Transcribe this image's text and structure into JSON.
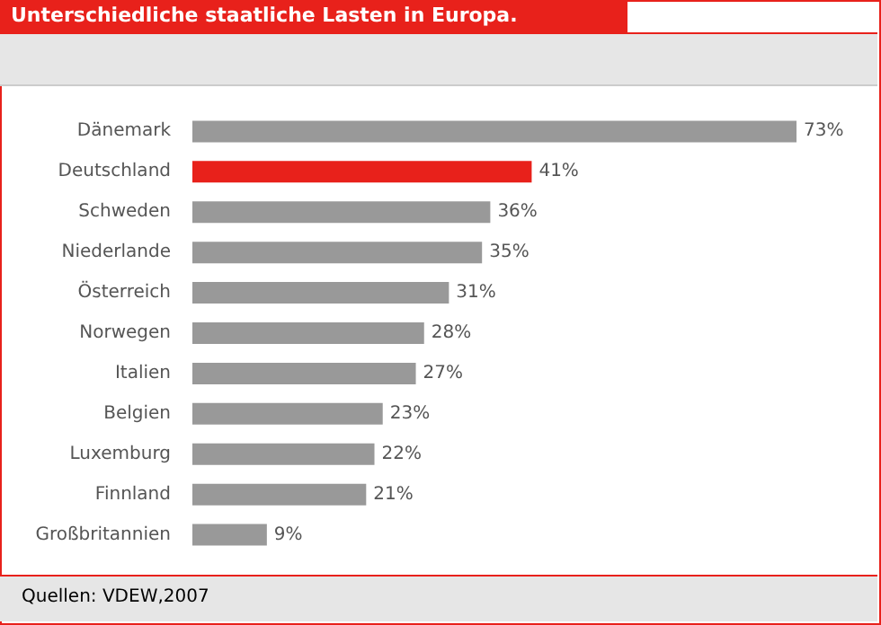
{
  "chart_data": {
    "type": "bar",
    "orientation": "horizontal",
    "title": "Unterschiedliche staatliche Lasten in Europa.",
    "categories": [
      "Dänemark",
      "Deutschland",
      "Schweden",
      "Niederlande",
      "Österreich",
      "Norwegen",
      "Italien",
      "Belgien",
      "Luxemburg",
      "Finnland",
      "Großbritannien"
    ],
    "values": [
      73,
      41,
      36,
      35,
      31,
      28,
      27,
      23,
      22,
      21,
      9
    ],
    "value_labels": [
      "73%",
      "41%",
      "36%",
      "35%",
      "31%",
      "28%",
      "27%",
      "23%",
      "22%",
      "21%",
      "9%"
    ],
    "colors": [
      "#999999",
      "#e8211b",
      "#999999",
      "#999999",
      "#999999",
      "#999999",
      "#999999",
      "#999999",
      "#999999",
      "#999999",
      "#999999"
    ],
    "annotations": [
      "Quellen: VDEW,2007"
    ]
  }
}
